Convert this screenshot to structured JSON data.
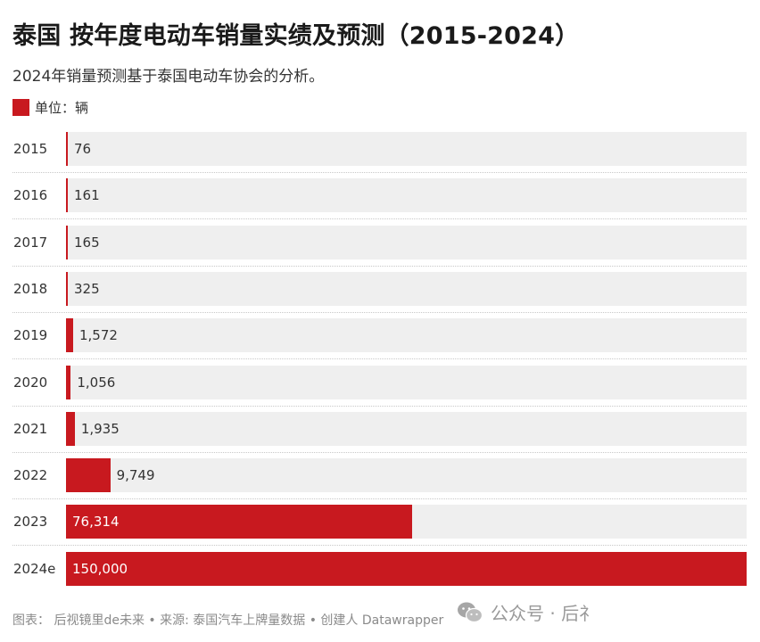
{
  "header": {
    "title": "泰国 按年度电动车销量实绩及预测（2015-2024）",
    "subtitle": "2024年销量预测基于泰国电动车协会的分析。"
  },
  "legend": {
    "label": "单位：辆",
    "color": "#c8191f"
  },
  "colors": {
    "bar": "#c8191f",
    "track": "#efefef",
    "value_text_outside": "#333333",
    "value_text_inside": "#ffffff"
  },
  "footer": {
    "text": "图表： 后视镜里de未来 • 来源: 泰国汽车上牌量数据 • 创建人 Datawrapper"
  },
  "watermark": {
    "text": "公众号 · 后礻",
    "icon": "wechat-icon"
  },
  "chart_data": {
    "type": "bar",
    "orientation": "horizontal",
    "title": "泰国 按年度电动车销量实绩及预测（2015-2024）",
    "subtitle": "2024年销量预测基于泰国电动车协会的分析。",
    "unit": "单位：辆",
    "categories": [
      "2015",
      "2016",
      "2017",
      "2018",
      "2019",
      "2020",
      "2021",
      "2022",
      "2023",
      "2024e"
    ],
    "values": [
      76,
      161,
      165,
      325,
      1572,
      1056,
      1935,
      9749,
      76314,
      150000
    ],
    "value_labels": [
      "76",
      "161",
      "165",
      "325",
      "1,572",
      "1,056",
      "1,935",
      "9,749",
      "76,314",
      "150,000"
    ],
    "xlim": [
      0,
      150000
    ],
    "grid": false,
    "legend": "top-left"
  }
}
